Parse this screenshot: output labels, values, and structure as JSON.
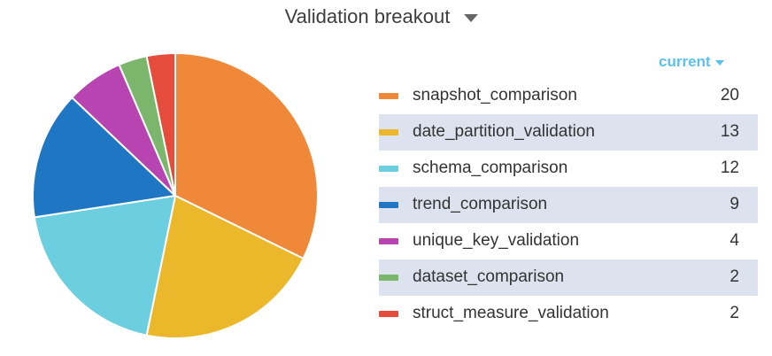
{
  "header": {
    "title": "Validation breakout",
    "menu_icon": "caret-down-icon"
  },
  "selector": {
    "label": "current",
    "icon": "caret-down-icon",
    "color": "#5bc0f0"
  },
  "chart_data": {
    "type": "pie",
    "title": "Validation breakout",
    "legend_position": "right",
    "slices": [
      {
        "label": "snapshot_comparison",
        "value": 20,
        "color": "#f0883a"
      },
      {
        "label": "date_partition_validation",
        "value": 13,
        "color": "#ebb82c"
      },
      {
        "label": "schema_comparison",
        "value": 12,
        "color": "#6ccfe0"
      },
      {
        "label": "trend_comparison",
        "value": 9,
        "color": "#1f77c4"
      },
      {
        "label": "unique_key_validation",
        "value": 4,
        "color": "#b744b0"
      },
      {
        "label": "dataset_comparison",
        "value": 2,
        "color": "#7cb56c"
      },
      {
        "label": "struct_measure_validation",
        "value": 2,
        "color": "#e54c3c"
      }
    ]
  }
}
